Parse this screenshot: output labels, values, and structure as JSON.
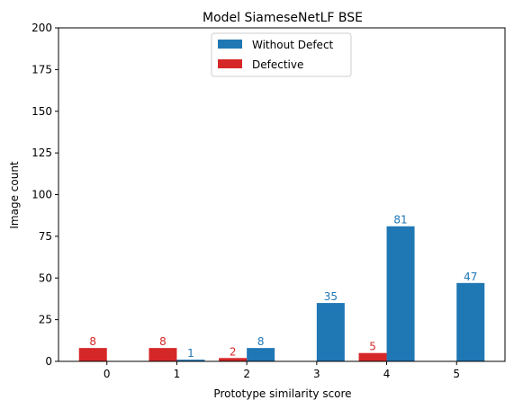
{
  "chart_data": {
    "type": "bar",
    "title": "Model SiameseNetLF BSE",
    "xlabel": "Prototype similarity score",
    "ylabel": "Image count",
    "categories": [
      "0",
      "1",
      "2",
      "3",
      "4",
      "5"
    ],
    "ylim": [
      0,
      200
    ],
    "yticks": [
      "0",
      "25",
      "50",
      "75",
      "100",
      "125",
      "150",
      "175",
      "200"
    ],
    "legend_position": "top-center",
    "series": [
      {
        "name": "Without Defect",
        "color": "#1f77b4",
        "values": [
          0,
          1,
          8,
          35,
          81,
          47
        ],
        "labels": [
          "",
          "1",
          "8",
          "35",
          "81",
          "47"
        ]
      },
      {
        "name": "Defective",
        "color": "#d62728",
        "values": [
          8,
          8,
          2,
          0,
          5,
          0
        ],
        "labels": [
          "8",
          "8",
          "2",
          "",
          "5",
          ""
        ]
      }
    ]
  }
}
